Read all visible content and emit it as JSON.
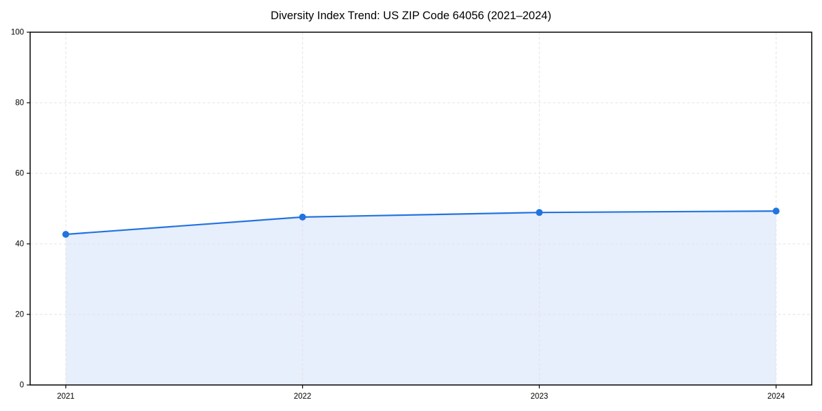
{
  "chart_data": {
    "type": "line",
    "title": "Diversity Index Trend: US ZIP Code 64056 (2021–2024)",
    "x": [
      "2021",
      "2022",
      "2023",
      "2024"
    ],
    "series": [
      {
        "name": "Diversity Index",
        "values": [
          42.7,
          47.6,
          48.9,
          49.3
        ]
      }
    ],
    "xlabel": "",
    "ylabel": "",
    "ylim": [
      0,
      100
    ],
    "yticks": [
      0,
      20,
      40,
      60,
      80,
      100
    ],
    "grid": true,
    "grid_style": "dashed",
    "legend_position": "none",
    "area_fill": true,
    "colors": {
      "line": "#2273df",
      "marker": "#2273df",
      "fill": "#e7eefc",
      "grid": "#e3e3e3",
      "axis": "#000000",
      "text": "#000000",
      "background": "#ffffff"
    }
  }
}
